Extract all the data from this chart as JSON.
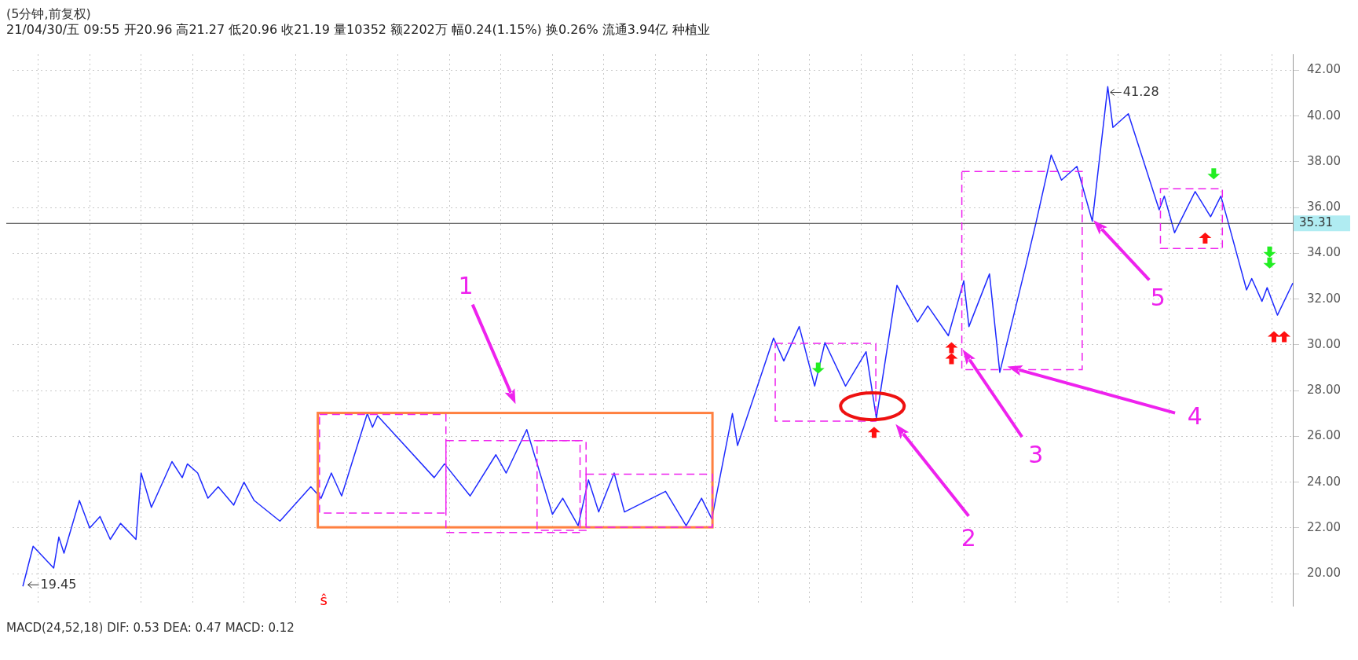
{
  "chart_data": {
    "type": "line",
    "title": "(5分钟,前复权)",
    "subtitle": "21/04/30/五 09:55 开20.96 高21.27 低20.96 收21.19 量10352 额2202万 幅0.24(1.15%) 换0.26% 流通3.94亿 种植业",
    "categories": [
      null,
      null,
      null,
      null,
      null,
      null,
      null,
      null,
      null,
      null,
      null,
      null,
      null,
      null,
      null,
      null,
      null,
      null,
      null,
      null,
      null,
      null,
      null,
      null,
      null,
      null,
      null,
      null,
      null,
      null,
      null,
      null,
      null,
      null,
      null,
      null,
      null,
      null,
      null,
      null,
      null,
      null,
      null,
      null,
      null,
      null,
      null,
      null,
      null,
      null,
      null,
      null,
      null,
      null,
      null,
      null,
      null,
      null,
      null,
      null,
      null,
      null,
      null,
      null,
      null,
      null,
      null,
      null,
      null,
      null,
      null,
      null,
      null,
      null,
      null,
      null,
      null,
      null,
      null,
      null,
      null,
      null,
      null,
      null,
      null,
      null,
      null,
      null,
      null,
      null,
      null,
      null,
      null,
      null,
      null,
      null,
      null,
      null,
      null,
      null,
      null,
      null,
      null,
      null,
      null,
      null,
      null,
      null,
      null,
      null,
      null,
      null,
      null,
      null,
      null,
      null,
      null,
      null,
      null,
      null,
      null,
      null,
      null,
      null,
      null,
      null,
      null,
      null,
      null,
      null,
      null,
      null,
      null,
      null,
      null,
      null,
      null,
      null,
      null,
      null,
      null,
      null,
      null,
      null,
      null,
      null,
      null,
      null,
      null,
      null,
      null,
      null,
      null,
      null,
      null,
      null,
      null,
      null,
      null,
      null,
      null,
      null,
      null,
      null,
      null,
      null,
      null,
      null,
      null,
      null,
      null,
      null,
      null,
      null,
      null,
      null,
      null,
      null,
      null,
      null,
      null,
      null,
      null,
      null,
      null,
      null,
      null,
      null,
      null,
      null,
      null,
      null,
      null,
      null,
      null,
      null,
      null,
      null,
      null,
      null,
      null,
      null,
      null,
      null,
      null,
      null,
      null,
      null,
      null,
      null,
      null,
      null,
      null,
      null,
      null,
      null,
      null,
      null,
      null,
      null,
      null,
      null,
      null,
      null,
      null,
      null,
      null,
      null,
      null,
      null,
      null,
      null,
      null,
      null,
      null,
      null,
      null,
      null,
      null,
      null,
      null,
      null,
      null,
      null,
      null,
      null,
      null,
      null,
      null,
      null
    ],
    "series": [
      {
        "color": "#1f2bff",
        "values": [
          null,
          null,
          19.45,
          null,
          21.2,
          null,
          null,
          null,
          20.25,
          21.6,
          20.9,
          null,
          null,
          23.2,
          null,
          22.0,
          null,
          22.5,
          null,
          21.5,
          null,
          22.2,
          null,
          null,
          21.5,
          24.4,
          null,
          22.9,
          null,
          null,
          null,
          24.9,
          null,
          24.2,
          24.8,
          null,
          24.4,
          null,
          23.3,
          null,
          23.8,
          null,
          null,
          23.0,
          null,
          24.0,
          null,
          23.2,
          null,
          null,
          null,
          null,
          22.3,
          null,
          null,
          null,
          null,
          null,
          23.8,
          null,
          23.3,
          null,
          24.4,
          null,
          23.4,
          null,
          null,
          null,
          null,
          27.0,
          26.4,
          26.9,
          null,
          null,
          null,
          null,
          null,
          null,
          null,
          null,
          null,
          null,
          24.2,
          null,
          24.8,
          null,
          null,
          null,
          null,
          23.4,
          null,
          null,
          null,
          null,
          25.2,
          null,
          24.4,
          null,
          null,
          null,
          26.3,
          null,
          null,
          null,
          null,
          22.6,
          null,
          23.3,
          null,
          null,
          22.1,
          null,
          24.1,
          null,
          22.7,
          null,
          null,
          24.4,
          null,
          22.7,
          null,
          null,
          null,
          null,
          null,
          null,
          null,
          23.6,
          null,
          null,
          null,
          22.1,
          null,
          null,
          23.3,
          null,
          22.4,
          null,
          null,
          null,
          27.0,
          25.6,
          null,
          null,
          null,
          null,
          null,
          null,
          30.3,
          null,
          29.3,
          null,
          null,
          30.8,
          null,
          null,
          28.2,
          null,
          30.1,
          null,
          null,
          null,
          28.2,
          null,
          null,
          null,
          29.7,
          null,
          26.8,
          null,
          null,
          null,
          32.6,
          null,
          null,
          null,
          31.0,
          null,
          31.7,
          null,
          null,
          null,
          30.4,
          null,
          null,
          32.8,
          30.8,
          null,
          null,
          null,
          33.1,
          null,
          28.8,
          null,
          null,
          null,
          null,
          33.4,
          null,
          35.3,
          null,
          null,
          38.3,
          null,
          37.2,
          null,
          null,
          37.8,
          null,
          null,
          35.4,
          null,
          null,
          41.28,
          39.5,
          null,
          null,
          40.1,
          null,
          null,
          null,
          37.3,
          null,
          35.9,
          36.5,
          null,
          34.9,
          null,
          null,
          null,
          36.7,
          null,
          null,
          35.6,
          null,
          36.5,
          35.7,
          null,
          null,
          null,
          32.4,
          32.9,
          null,
          31.9,
          32.5,
          null,
          31.3,
          null,
          null,
          32.7
        ]
      }
    ],
    "ylim": [
      18.6,
      42.7
    ],
    "yticks": [
      {
        "value": 20,
        "label": "20.00"
      },
      {
        "value": 22,
        "label": "22.00"
      },
      {
        "value": 24,
        "label": "24.00"
      },
      {
        "value": 26,
        "label": "26.00"
      },
      {
        "value": 28,
        "label": "28.00"
      },
      {
        "value": 30,
        "label": "30.00"
      },
      {
        "value": 32,
        "label": "32.00"
      },
      {
        "value": 34,
        "label": "34.00"
      },
      {
        "value": 36,
        "label": "36.00"
      },
      {
        "value": 38,
        "label": "38.00"
      },
      {
        "value": 40,
        "label": "40.00"
      },
      {
        "value": 42,
        "label": "42.00"
      }
    ],
    "ref_lines": [
      {
        "axis": "y",
        "value": 35.31,
        "label": "35.31",
        "color": "#404040"
      }
    ],
    "annotations": [
      "41.28",
      "19.45",
      "1",
      "2",
      "3",
      "4",
      "5",
      "ŝ",
      "MACD(24,52,18) DIF: 0.53 DEA: 0.47 MACD: 0.12"
    ],
    "grid": true,
    "legend": false,
    "marker": "none",
    "line_style": "solid",
    "tick_labels": "y"
  }
}
